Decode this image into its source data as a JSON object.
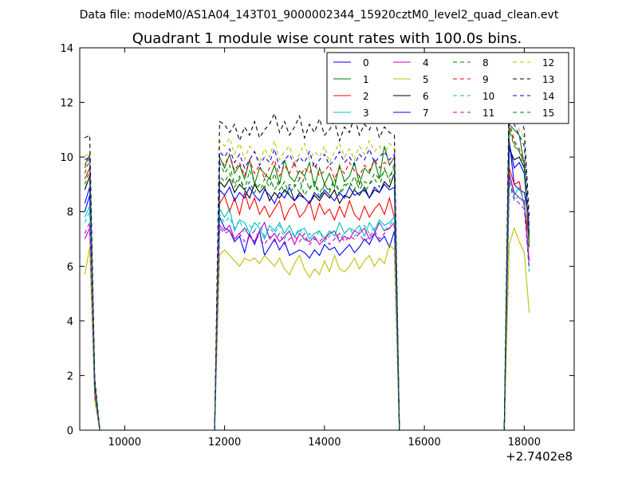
{
  "header": {
    "file_text": "Data file: modeM0/AS1A04_143T01_9000002344_15920cztM0_level2_quad_clean.evt",
    "title": "Quadrant 1 module wise count rates with 100.0s bins."
  },
  "chart_data": {
    "type": "line",
    "title": "Quadrant 1 module wise count rates with 100.0s bins.",
    "xlabel": "",
    "ylabel": "",
    "x_offset_text": "+2.7402e8",
    "xlim": [
      9100,
      19000
    ],
    "ylim": [
      0,
      14
    ],
    "xticks": [
      10000,
      12000,
      14000,
      16000,
      18000
    ],
    "yticks": [
      0,
      2,
      4,
      6,
      8,
      10,
      12,
      14
    ],
    "grid": false,
    "legend_position": "top-right",
    "legend_columns": 4,
    "x": [
      9200,
      9300,
      9400,
      9500,
      11800,
      11900,
      12000,
      12100,
      12200,
      12300,
      12400,
      12500,
      12600,
      12700,
      12800,
      12900,
      13000,
      13100,
      13200,
      13300,
      13400,
      13500,
      13600,
      13700,
      13800,
      13900,
      14000,
      14100,
      14200,
      14300,
      14400,
      14500,
      14600,
      14700,
      14800,
      14900,
      15000,
      15100,
      15200,
      15300,
      15400,
      15500,
      17600,
      17700,
      17800,
      17900,
      18000,
      18100
    ],
    "series": [
      {
        "name": "0",
        "color": "#0000ff",
        "dashed": false,
        "values": [
          8.0,
          8.6,
          1.4,
          0,
          0,
          7.8,
          7.4,
          7.3,
          6.9,
          7.1,
          6.5,
          7.2,
          6.8,
          7.3,
          6.4,
          6.7,
          7.0,
          6.6,
          6.9,
          6.4,
          6.5,
          6.6,
          6.5,
          6.3,
          6.6,
          6.4,
          6.8,
          6.6,
          6.7,
          6.4,
          6.6,
          6.8,
          6.5,
          6.7,
          7.0,
          6.8,
          7.2,
          6.9,
          7.1,
          6.7,
          7.3,
          0,
          0,
          10.6,
          9.0,
          8.8,
          8.7,
          7.6
        ]
      },
      {
        "name": "1",
        "color": "#008000",
        "dashed": false,
        "values": [
          9.7,
          10.1,
          1.8,
          0,
          0,
          10.0,
          9.6,
          10.1,
          9.4,
          9.7,
          9.2,
          9.9,
          9.0,
          9.6,
          9.4,
          9.2,
          9.7,
          9.0,
          9.9,
          9.3,
          9.1,
          9.5,
          9.3,
          9.8,
          8.9,
          9.6,
          9.0,
          9.4,
          8.9,
          9.7,
          9.1,
          9.3,
          9.8,
          9.0,
          9.6,
          9.4,
          9.9,
          9.2,
          10.4,
          9.7,
          10.0,
          0,
          0,
          11.2,
          11.0,
          10.8,
          9.7,
          6.7
        ]
      },
      {
        "name": "2",
        "color": "#ff0000",
        "dashed": false,
        "values": [
          9.2,
          9.6,
          1.6,
          0,
          0,
          8.3,
          8.6,
          8.0,
          8.5,
          7.9,
          8.7,
          8.1,
          8.5,
          7.9,
          8.2,
          7.8,
          8.1,
          8.4,
          7.7,
          8.1,
          8.3,
          7.8,
          8.0,
          8.4,
          7.7,
          8.3,
          7.9,
          8.1,
          7.7,
          8.2,
          7.8,
          8.4,
          7.9,
          7.7,
          8.2,
          7.8,
          8.1,
          8.3,
          7.9,
          8.5,
          7.8,
          0,
          0,
          9.6,
          9.0,
          9.1,
          8.2,
          7.0
        ]
      },
      {
        "name": "3",
        "color": "#00bfbf",
        "dashed": false,
        "values": [
          7.8,
          8.2,
          1.5,
          0,
          0,
          8.1,
          7.8,
          8.1,
          7.3,
          7.7,
          7.6,
          7.2,
          7.6,
          7.4,
          7.0,
          7.5,
          7.3,
          7.6,
          7.2,
          7.5,
          7.1,
          7.3,
          7.4,
          7.0,
          7.2,
          7.3,
          7.0,
          7.3,
          7.1,
          7.6,
          7.2,
          7.4,
          7.3,
          7.5,
          7.1,
          7.6,
          7.3,
          7.7,
          7.5,
          7.6,
          7.8,
          0,
          0,
          9.3,
          8.6,
          8.9,
          8.3,
          6.0
        ]
      },
      {
        "name": "4",
        "color": "#bf00bf",
        "dashed": false,
        "values": [
          7.0,
          7.4,
          1.3,
          0,
          0,
          7.5,
          7.3,
          7.5,
          7.0,
          7.2,
          7.4,
          7.1,
          6.9,
          7.3,
          7.6,
          7.0,
          7.2,
          6.9,
          7.1,
          7.3,
          6.8,
          7.2,
          7.0,
          6.9,
          7.1,
          6.8,
          7.0,
          7.2,
          7.3,
          6.9,
          7.1,
          7.0,
          7.3,
          7.2,
          7.4,
          7.0,
          7.2,
          7.6,
          7.3,
          7.4,
          7.6,
          0,
          0,
          9.4,
          8.7,
          8.5,
          8.4,
          6.2
        ]
      },
      {
        "name": "5",
        "color": "#bfbf00",
        "dashed": false,
        "values": [
          5.7,
          6.7,
          1.1,
          0,
          0,
          6.4,
          6.6,
          6.4,
          6.2,
          6.0,
          6.3,
          6.2,
          6.3,
          6.1,
          6.4,
          6.2,
          6.0,
          6.3,
          5.9,
          5.7,
          6.1,
          6.4,
          5.9,
          5.6,
          5.9,
          5.7,
          6.2,
          5.8,
          6.4,
          5.9,
          5.8,
          6.0,
          6.3,
          5.9,
          6.2,
          6.4,
          6.0,
          6.3,
          6.1,
          6.8,
          6.6,
          0,
          0,
          6.8,
          7.4,
          6.9,
          6.5,
          4.3
        ]
      },
      {
        "name": "6",
        "color": "#000000",
        "dashed": false,
        "values": [
          8.8,
          9.3,
          1.6,
          0,
          0,
          9.1,
          8.9,
          9.2,
          8.7,
          9.0,
          8.8,
          8.5,
          9.0,
          8.7,
          8.9,
          8.4,
          8.7,
          8.5,
          8.8,
          8.6,
          8.4,
          8.7,
          8.5,
          8.3,
          8.6,
          8.4,
          8.7,
          8.5,
          8.8,
          8.3,
          8.6,
          8.5,
          8.8,
          8.6,
          8.9,
          8.5,
          8.8,
          8.7,
          9.1,
          8.9,
          9.4,
          0,
          0,
          10.3,
          9.9,
          10.0,
          9.6,
          7.2
        ]
      },
      {
        "name": "7",
        "color": "#0000ff",
        "dashed": false,
        "values": [
          8.3,
          8.9,
          1.5,
          0,
          0,
          8.8,
          8.6,
          8.9,
          8.4,
          8.7,
          8.5,
          8.9,
          8.6,
          8.4,
          8.8,
          8.6,
          8.3,
          8.7,
          8.5,
          8.9,
          8.4,
          8.6,
          8.5,
          8.3,
          8.7,
          8.5,
          8.8,
          8.6,
          8.4,
          8.7,
          8.5,
          8.9,
          8.6,
          8.7,
          8.8,
          8.5,
          8.9,
          8.7,
          9.0,
          8.8,
          8.9,
          0,
          0,
          10.5,
          9.6,
          9.8,
          9.4,
          7.1
        ]
      },
      {
        "name": "8",
        "color": "#008000",
        "dashed": true,
        "values": [
          9.4,
          9.9,
          1.7,
          0,
          0,
          9.8,
          9.4,
          9.7,
          9.0,
          9.3,
          8.8,
          9.5,
          9.1,
          8.7,
          9.2,
          8.9,
          9.4,
          8.8,
          9.1,
          8.6,
          9.0,
          8.7,
          9.3,
          8.8,
          9.1,
          8.5,
          9.0,
          8.7,
          9.2,
          8.6,
          8.9,
          9.1,
          8.8,
          9.3,
          8.7,
          9.0,
          9.2,
          8.9,
          9.6,
          9.1,
          9.8,
          0,
          0,
          11.0,
          10.4,
          10.2,
          9.7,
          6.6
        ]
      },
      {
        "name": "9",
        "color": "#ff0000",
        "dashed": true,
        "values": [
          9.6,
          10.0,
          1.7,
          0,
          0,
          9.9,
          9.7,
          10.1,
          9.5,
          9.8,
          9.3,
          9.9,
          9.4,
          9.7,
          9.2,
          9.6,
          9.9,
          9.3,
          9.7,
          9.4,
          9.8,
          9.2,
          9.6,
          9.4,
          9.8,
          9.3,
          9.5,
          9.7,
          9.2,
          9.6,
          9.4,
          9.8,
          9.5,
          9.3,
          9.7,
          9.5,
          9.9,
          9.6,
          9.8,
          9.7,
          10.0,
          0,
          0,
          11.3,
          10.6,
          10.3,
          9.9,
          6.8
        ]
      },
      {
        "name": "10",
        "color": "#00bfbf",
        "dashed": true,
        "values": [
          7.6,
          8.0,
          1.4,
          0,
          0,
          7.9,
          7.6,
          7.8,
          7.4,
          7.7,
          7.2,
          7.5,
          7.3,
          7.6,
          7.1,
          7.4,
          7.2,
          7.5,
          7.0,
          7.3,
          7.1,
          7.4,
          6.9,
          7.2,
          7.0,
          7.3,
          6.9,
          7.1,
          7.3,
          7.0,
          7.2,
          7.4,
          7.1,
          7.3,
          7.5,
          7.2,
          7.4,
          7.6,
          7.3,
          7.5,
          7.7,
          0,
          0,
          9.0,
          8.4,
          8.6,
          8.2,
          5.8
        ]
      },
      {
        "name": "11",
        "color": "#bf00bf",
        "dashed": true,
        "values": [
          7.2,
          7.6,
          1.3,
          0,
          0,
          7.4,
          7.2,
          7.3,
          7.0,
          7.2,
          6.9,
          7.1,
          7.3,
          7.0,
          6.8,
          7.1,
          6.9,
          7.2,
          6.8,
          7.0,
          7.1,
          6.9,
          7.2,
          6.8,
          7.0,
          6.9,
          7.1,
          6.8,
          7.0,
          7.2,
          6.9,
          7.1,
          7.0,
          7.2,
          6.9,
          7.1,
          7.3,
          7.0,
          7.2,
          7.4,
          7.5,
          0,
          0,
          9.1,
          8.5,
          8.3,
          8.1,
          5.9
        ]
      },
      {
        "name": "12",
        "color": "#bfbf00",
        "dashed": true,
        "values": [
          10.0,
          10.2,
          1.8,
          0,
          0,
          10.6,
          10.4,
          10.7,
          10.1,
          10.5,
          9.9,
          10.4,
          10.2,
          9.8,
          10.3,
          10.0,
          10.6,
          9.9,
          10.2,
          10.4,
          9.8,
          10.1,
          10.5,
          9.9,
          10.2,
          10.0,
          10.4,
          9.8,
          10.2,
          10.5,
          10.0,
          10.3,
          9.9,
          10.4,
          10.1,
          10.6,
          10.2,
          10.4,
          10.1,
          10.5,
          10.3,
          0,
          0,
          12.2,
          11.5,
          11.0,
          10.7,
          7.6
        ]
      },
      {
        "name": "13",
        "color": "#000000",
        "dashed": true,
        "values": [
          10.7,
          10.8,
          1.9,
          0,
          0,
          11.3,
          11.2,
          10.9,
          11.2,
          10.6,
          11.1,
          10.8,
          11.3,
          10.7,
          11.0,
          11.2,
          11.6,
          10.9,
          11.3,
          10.8,
          11.1,
          11.5,
          10.7,
          11.2,
          10.9,
          11.4,
          10.8,
          11.0,
          11.3,
          10.6,
          11.1,
          10.9,
          11.5,
          10.8,
          11.2,
          11.0,
          11.4,
          10.7,
          11.1,
          10.9,
          10.8,
          0,
          0,
          12.9,
          12.1,
          11.7,
          11.0,
          7.8
        ]
      },
      {
        "name": "14",
        "color": "#0000ff",
        "dashed": true,
        "values": [
          9.9,
          10.0,
          1.7,
          0,
          0,
          10.2,
          10.0,
          10.3,
          9.8,
          10.1,
          9.6,
          9.9,
          10.2,
          9.7,
          10.0,
          9.8,
          10.3,
          9.6,
          9.9,
          10.1,
          9.7,
          10.0,
          9.8,
          10.2,
          9.6,
          9.9,
          10.1,
          9.7,
          9.9,
          10.2,
          9.8,
          10.0,
          9.7,
          10.1,
          9.9,
          10.3,
          9.8,
          10.0,
          10.2,
          9.9,
          10.1,
          0,
          0,
          12.0,
          11.2,
          10.8,
          10.4,
          7.4
        ]
      },
      {
        "name": "15",
        "color": "#008000",
        "dashed": true,
        "values": [
          9.0,
          9.5,
          1.6,
          0,
          0,
          9.3,
          9.1,
          9.4,
          8.9,
          9.2,
          8.8,
          9.1,
          8.7,
          9.0,
          8.9,
          9.3,
          8.8,
          9.1,
          8.7,
          9.0,
          8.9,
          9.2,
          8.6,
          8.9,
          9.1,
          8.7,
          9.0,
          8.8,
          9.2,
          8.7,
          9.0,
          8.9,
          9.3,
          8.8,
          9.1,
          9.0,
          9.4,
          9.2,
          9.5,
          9.3,
          9.6,
          0,
          0,
          11.1,
          10.5,
          10.2,
          9.8,
          6.9
        ]
      }
    ]
  }
}
